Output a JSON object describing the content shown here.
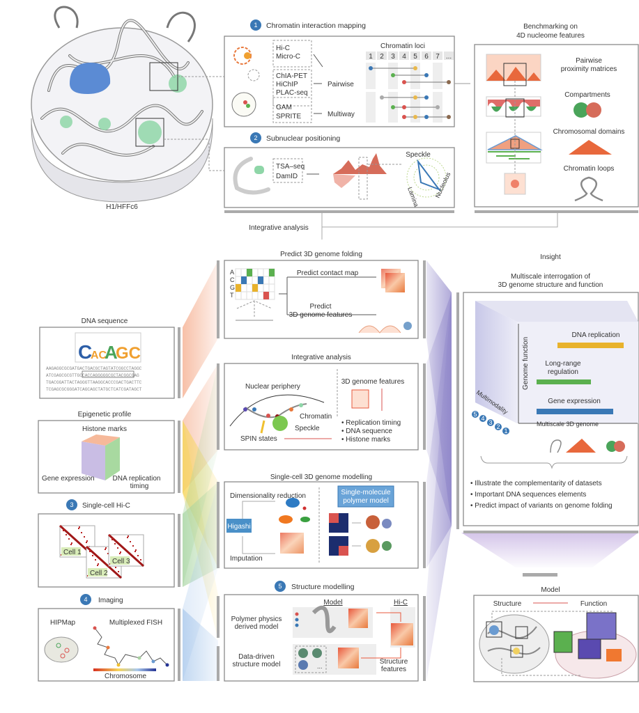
{
  "cell_label": "H1/HFFc6",
  "section1": {
    "number": "1",
    "title": "Chromatin interaction mapping",
    "methods_a": [
      "Hi-C",
      "Micro-C"
    ],
    "methods_b": [
      "ChIA-PET",
      "HiChIP",
      "PLAC-seq"
    ],
    "methods_c": [
      "GAM",
      "SPRITE"
    ],
    "pairwise": "Pairwise",
    "multiway": "Multiway",
    "loci_title": "Chromatin loci",
    "loci": [
      "1",
      "2",
      "3",
      "4",
      "5",
      "6",
      "7",
      "..."
    ]
  },
  "section2": {
    "number": "2",
    "title": "Subnuclear positioning",
    "methods": [
      "TSA–seq",
      "DamID"
    ],
    "radar": {
      "speckle": "Speckle",
      "lamina": "Lamina",
      "nucleolus": "Nucleolus"
    }
  },
  "benchmark": {
    "title_line1": "Benchmarking on",
    "title_line2": "4D nucleome features",
    "pairwise_line1": "Pairwise",
    "pairwise_line2": "proximity matrices",
    "compartments": "Compartments",
    "domains": "Chromosomal domains",
    "loops": "Chromatin loops"
  },
  "integrative_label": "Integrative analysis",
  "left": {
    "dna": {
      "title": "DNA sequence",
      "sequences": [
        "AAGAGGCGCGATGACTGACGCTAGTATCGGCCTAGGC",
        "ATCGAGCGCGTTGCCACCAGGGGGCGCTACGGCGAG",
        "TGACGGATTACTAGGGTTAAGGCACCCGACTGACTTC",
        "TCGAGCGCGGGATCAGCAGCTATGCTCATCGATAGCT"
      ]
    },
    "epigenetic": {
      "title": "Epigenetic profile",
      "histone": "Histone marks",
      "gene_expression": "Gene expression",
      "replication_line1": "DNA replication",
      "replication_line2": "timing"
    },
    "single_cell": {
      "number": "3",
      "title": "Single-cell Hi-C",
      "cells": [
        "Cell 1",
        "Cell 2",
        "Cell 3"
      ]
    },
    "imaging": {
      "number": "4",
      "title": "Imaging",
      "hipmap": "HIPMap",
      "fish": "Multiplexed FISH",
      "chromosome": "Chromosome"
    }
  },
  "middle": {
    "predict": {
      "title": "Predict 3D genome folding",
      "bases": [
        "A",
        "C",
        "G",
        "T"
      ],
      "contact_map": "Predict contact map",
      "features_line1": "Predict",
      "features_line2": "3D genome features"
    },
    "integrative": {
      "title": "Integrative analysis",
      "periphery": "Nuclear periphery",
      "chromatin": "Chromatin",
      "speckle": "Speckle",
      "spin": "SPIN states",
      "features_title": "3D genome features",
      "bullets": [
        "Replication timing",
        "DNA sequence",
        "Histone marks"
      ]
    },
    "singlecell": {
      "title": "Single-cell 3D genome modelling",
      "dimred": "Dimensionality reduction",
      "higashi": "Higashi",
      "imputation": "Imputation",
      "polymer_line1": "Single-molecule",
      "polymer_line2": "polymer model"
    },
    "structure": {
      "number": "5",
      "title": "Structure modelling",
      "model": "Model",
      "hic": "Hi-C",
      "polymer_line1": "Polymer physics",
      "polymer_line2": "derived model",
      "data_line1": "Data-driven",
      "data_line2": "structure model",
      "ellipsis": "...",
      "features_line1": "Structure",
      "features_line2": "features"
    }
  },
  "right": {
    "insight": "Insight",
    "title_line1": "Multiscale interrogation of",
    "title_line2": "3D genome structure and function",
    "dna_replication": "DNA replication",
    "long_range_line1": "Long-range",
    "long_range_line2": "regulation",
    "gene_expression": "Gene expression",
    "genome_function": "Genome function",
    "multiscale": "Multiscale 3D genome",
    "multimodality": "Multimodality",
    "modalities": [
      "5",
      "4",
      "3",
      "2",
      "1"
    ],
    "bullets": [
      "Illustrate the complementarity of datasets",
      "Important DNA sequences elements",
      "Predict impact of variants on genome folding"
    ],
    "model": {
      "title": "Model",
      "structure": "Structure",
      "function": "Function"
    }
  },
  "colors": {
    "accent_blue": "#3a78b5",
    "red": "#d9534f",
    "orange": "#e8783c",
    "green": "#5bb04f",
    "yellow": "#e8b22c",
    "purple": "#8f86c9"
  }
}
